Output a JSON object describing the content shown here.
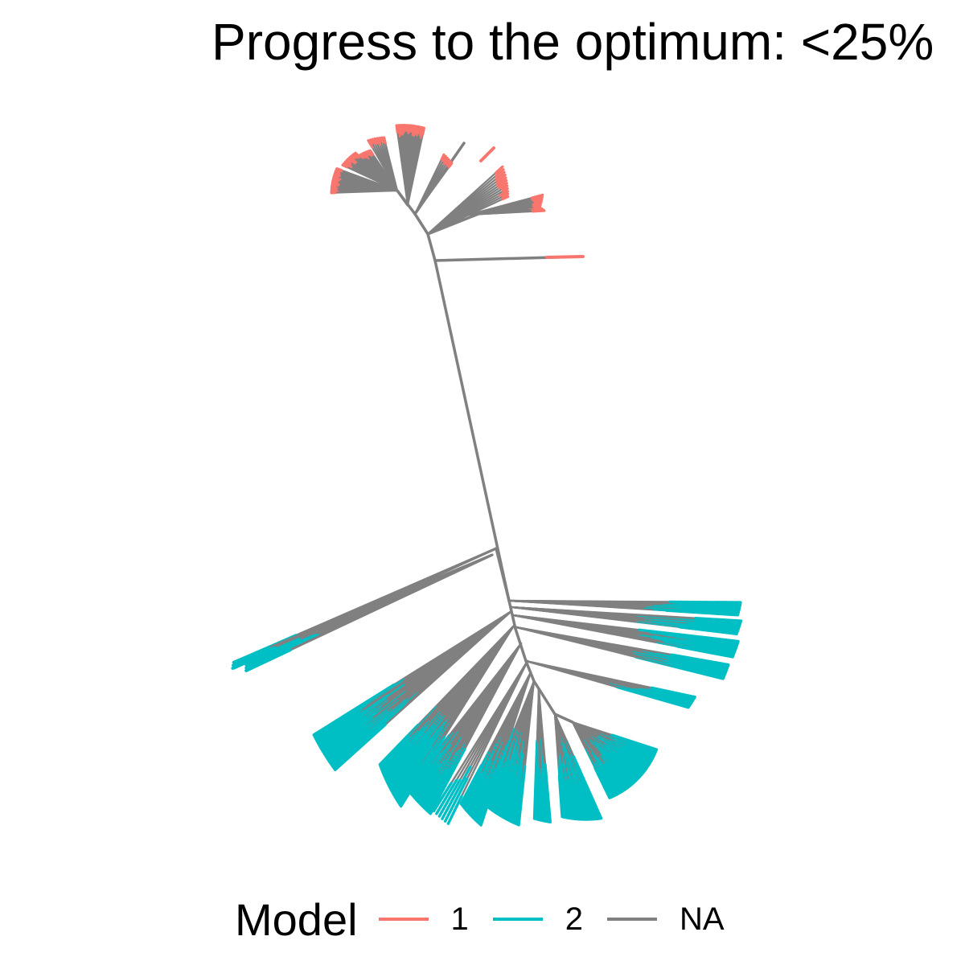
{
  "title": "Progress to the optimum: <25%",
  "legend": {
    "title": "Model",
    "items": [
      {
        "label": "1",
        "color": "#F8766D"
      },
      {
        "label": "2",
        "color": "#00BFC4"
      },
      {
        "label": "NA",
        "color": "#808080"
      }
    ]
  },
  "colors": {
    "model_1": "#F8766D",
    "model_2": "#00BFC4",
    "na": "#808080"
  }
}
